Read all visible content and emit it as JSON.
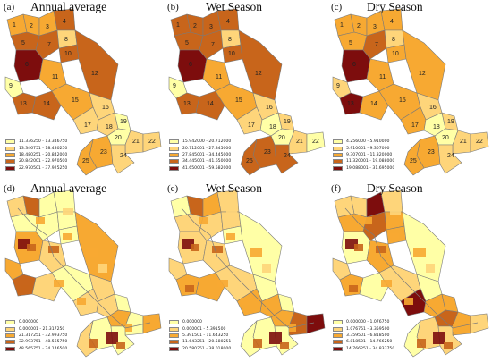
{
  "colors": {
    "c1": "#ffffa6",
    "c2": "#fed57a",
    "c3": "#f7a932",
    "c4": "#c8651b",
    "c5": "#7d0d0d",
    "border": "#7a7a7a"
  },
  "panels": [
    {
      "label": "(a)",
      "title": "Annual average",
      "legend": [
        "11.336250 - 13.346750",
        "13.346751 - 18.480250",
        "18.480251 - 20.842000",
        "20.842001 - 22.970500",
        "22.970501 - 37.925250"
      ]
    },
    {
      "label": "(b)",
      "title": "Wet Season",
      "legend": [
        "15.942000 - 20.712000",
        "20.712001 - 27.845000",
        "27.845001 - 34.445000",
        "34.445001 - 41.650000",
        "41.650001 - 59.582000"
      ]
    },
    {
      "label": "(c)",
      "title": "Dry Season",
      "legend": [
        "4.256000 - 5.910000",
        "5.910001 - 9.307000",
        "9.307001 - 11.320000",
        "11.320001 - 19.088000",
        "19.088001 - 31.695000"
      ]
    },
    {
      "label": "(d)",
      "title": "Annual average",
      "legend": [
        "0.000000",
        "0.000001 - 21.317250",
        "21.317251 - 32.993750",
        "32.993751 - 48.565750",
        "48.565751 - 74.146500"
      ]
    },
    {
      "label": "(e)",
      "title": "Wet Season",
      "legend": [
        "0.000000",
        "0.000001 - 5.391500",
        "5.391501 - 11.643250",
        "11.643251 - 20.580251",
        "20.580251 - 38.018000"
      ]
    },
    {
      "label": "(f)",
      "title": "Dry Season",
      "legend": [
        "0.000000 - 1.076750",
        "1.076751 - 3.359500",
        "3.359501 - 6.818500",
        "6.818501 - 14.766250",
        "14.766251 - 34.833750"
      ]
    }
  ],
  "subbasin_labels": [
    "1",
    "2",
    "3",
    "4",
    "5",
    "6",
    "7",
    "8",
    "9",
    "10",
    "11",
    "12",
    "13",
    "14",
    "15",
    "16",
    "17",
    "18",
    "19",
    "20",
    "21",
    "22",
    "23",
    "24",
    "25"
  ],
  "subbasin_classes": {
    "a": [
      3,
      3,
      3,
      4,
      4,
      5,
      4,
      2,
      1,
      4,
      3,
      4,
      4,
      4,
      3,
      2,
      2,
      2,
      1,
      1,
      2,
      2,
      3,
      2,
      3
    ],
    "b": [
      4,
      4,
      4,
      4,
      4,
      5,
      4,
      2,
      1,
      4,
      3,
      4,
      4,
      4,
      3,
      2,
      2,
      1,
      2,
      1,
      2,
      1,
      4,
      4,
      4
    ],
    "c": [
      3,
      3,
      3,
      3,
      3,
      5,
      4,
      2,
      2,
      3,
      3,
      3,
      5,
      3,
      3,
      2,
      3,
      1,
      2,
      1,
      2,
      2,
      3,
      2,
      3
    ]
  }
}
